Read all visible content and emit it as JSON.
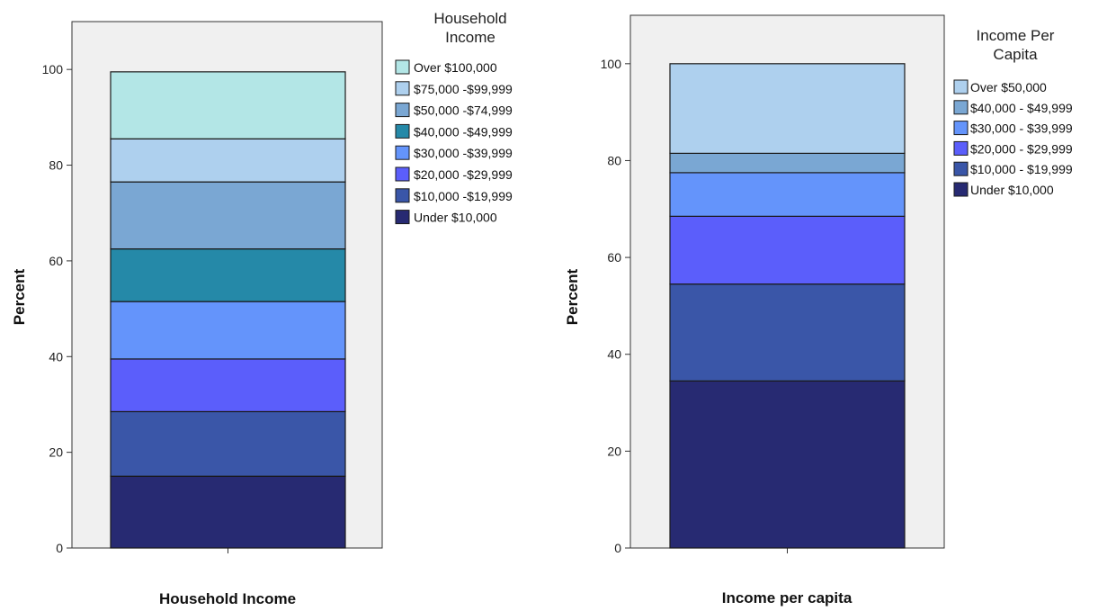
{
  "chart_data": [
    {
      "type": "bar",
      "stacked": true,
      "categories": [
        ""
      ],
      "xlabel": "Household Income",
      "ylabel": "Percent",
      "ylim": [
        0,
        110
      ],
      "yticks": [
        0,
        20,
        40,
        60,
        80,
        100
      ],
      "legend_title": "Household Income",
      "legend_position": "right",
      "series": [
        {
          "name": "Under $10,000",
          "values": [
            15
          ],
          "color": "#272a72"
        },
        {
          "name": "$10,000 -$19,999",
          "values": [
            13.5
          ],
          "color": "#3a56a8"
        },
        {
          "name": "$20,000 -$29,999",
          "values": [
            11
          ],
          "color": "#5b5efb"
        },
        {
          "name": "$30,000 -$39,999",
          "values": [
            12
          ],
          "color": "#6494fb"
        },
        {
          "name": "$40,000 -$49,999",
          "values": [
            11
          ],
          "color": "#2589a8"
        },
        {
          "name": "$50,000 -$74,999",
          "values": [
            14
          ],
          "color": "#7aa7d3"
        },
        {
          "name": "$75,000 -$99,999",
          "values": [
            9
          ],
          "color": "#aed0ee"
        },
        {
          "name": "Over $100,000",
          "values": [
            14
          ],
          "color": "#b3e6e6"
        }
      ]
    },
    {
      "type": "bar",
      "stacked": true,
      "categories": [
        ""
      ],
      "xlabel": "Income per capita",
      "ylabel": "Percent",
      "ylim": [
        0,
        110
      ],
      "yticks": [
        0,
        20,
        40,
        60,
        80,
        100
      ],
      "legend_title": "Income Per Capita",
      "legend_position": "right",
      "series": [
        {
          "name": "Under $10,000",
          "values": [
            34.5
          ],
          "color": "#272a72"
        },
        {
          "name": "$10,000 - $19,999",
          "values": [
            20
          ],
          "color": "#3a56a8"
        },
        {
          "name": "$20,000 - $29,999",
          "values": [
            14
          ],
          "color": "#5b5efb"
        },
        {
          "name": "$30,000 - $39,999",
          "values": [
            9
          ],
          "color": "#6494fb"
        },
        {
          "name": "$40,000 - $49,999",
          "values": [
            4
          ],
          "color": "#7aa7d3"
        },
        {
          "name": "Over $50,000",
          "values": [
            18.5
          ],
          "color": "#aed0ee"
        }
      ]
    }
  ]
}
